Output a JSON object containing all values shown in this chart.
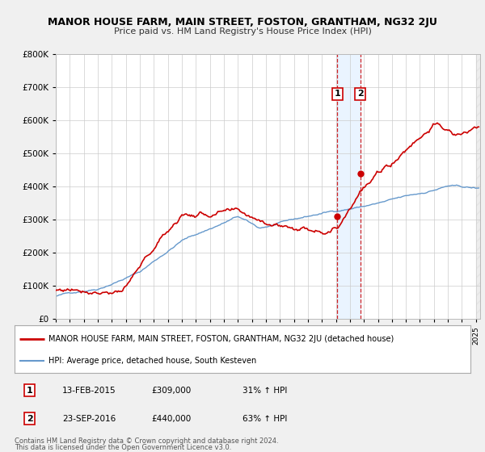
{
  "title": "MANOR HOUSE FARM, MAIN STREET, FOSTON, GRANTHAM, NG32 2JU",
  "subtitle": "Price paid vs. HM Land Registry's House Price Index (HPI)",
  "bg_color": "#f0f0f0",
  "plot_bg_color": "#ffffff",
  "red_color": "#cc0000",
  "blue_color": "#6699cc",
  "shade_color": "#ddeeff",
  "xmin": 1995.0,
  "xmax": 2025.3,
  "ymin": 0,
  "ymax": 800000,
  "yticks": [
    0,
    100000,
    200000,
    300000,
    400000,
    500000,
    600000,
    700000,
    800000
  ],
  "ytick_labels": [
    "£0",
    "£100K",
    "£200K",
    "£300K",
    "£400K",
    "£500K",
    "£600K",
    "£700K",
    "£800K"
  ],
  "sale1_x": 2015.11,
  "sale1_y": 309000,
  "sale2_x": 2016.73,
  "sale2_y": 440000,
  "sale1_label": "1",
  "sale2_label": "2",
  "legend_line1": "MANOR HOUSE FARM, MAIN STREET, FOSTON, GRANTHAM, NG32 2JU (detached house)",
  "legend_line2": "HPI: Average price, detached house, South Kesteven",
  "table_row1": [
    "1",
    "13-FEB-2015",
    "£309,000",
    "31% ↑ HPI"
  ],
  "table_row2": [
    "2",
    "23-SEP-2016",
    "£440,000",
    "63% ↑ HPI"
  ],
  "footnote1": "Contains HM Land Registry data © Crown copyright and database right 2024.",
  "footnote2": "This data is licensed under the Open Government Licence v3.0."
}
